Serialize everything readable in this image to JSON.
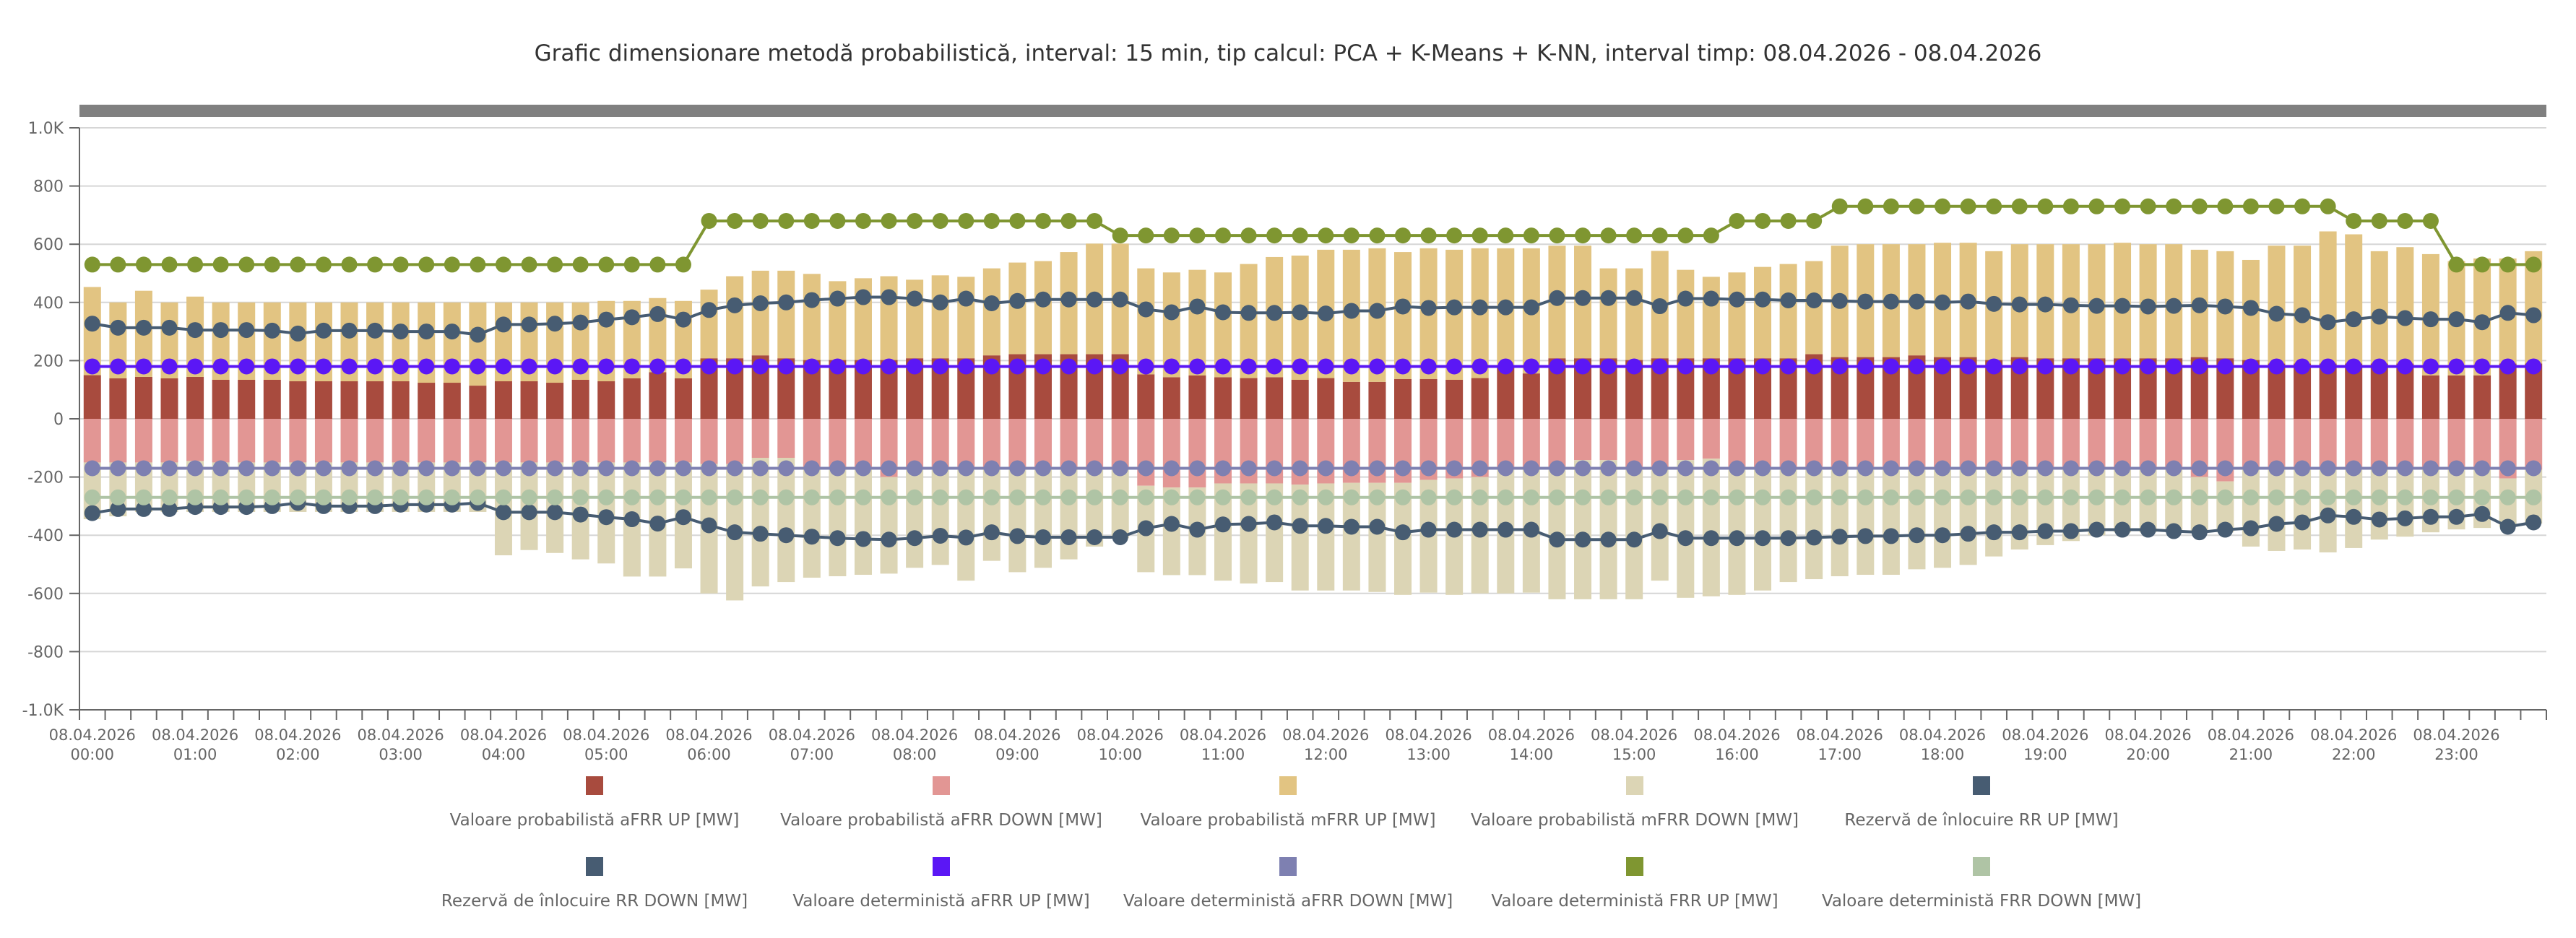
{
  "title": "Grafic dimensionare metodă probabilistică, interval: 15 min, tip calcul: PCA + K-Means + K-NN, interval timp: 08.04.2026 - 08.04.2026",
  "chart_data": {
    "type": "bar",
    "title": "Grafic dimensionare metodă probabilistică, interval: 15 min, tip calcul: PCA + K-Means + K-NN, interval timp: 08.04.2026 - 08.04.2026",
    "xlabel": "",
    "ylabel": "",
    "ylim": [
      -1000,
      1000
    ],
    "yticks": [
      "1.0K",
      "800",
      "600",
      "400",
      "200",
      "0",
      "-200",
      "-400",
      "-600",
      "-800",
      "-1.0K"
    ],
    "ytick_values": [
      1000,
      800,
      600,
      400,
      200,
      0,
      -200,
      -400,
      -600,
      -800,
      -1000
    ],
    "grid": true,
    "legend_position": "bottom",
    "x_count": 96,
    "x_interval": "15 min",
    "xtick_labels": [
      [
        "08.04.2026",
        "00:00"
      ],
      [
        "08.04.2026",
        "01:00"
      ],
      [
        "08.04.2026",
        "02:00"
      ],
      [
        "08.04.2026",
        "03:00"
      ],
      [
        "08.04.2026",
        "04:00"
      ],
      [
        "08.04.2026",
        "05:00"
      ],
      [
        "08.04.2026",
        "06:00"
      ],
      [
        "08.04.2026",
        "07:00"
      ],
      [
        "08.04.2026",
        "08:00"
      ],
      [
        "08.04.2026",
        "09:00"
      ],
      [
        "08.04.2026",
        "10:00"
      ],
      [
        "08.04.2026",
        "11:00"
      ],
      [
        "08.04.2026",
        "12:00"
      ],
      [
        "08.04.2026",
        "13:00"
      ],
      [
        "08.04.2026",
        "14:00"
      ],
      [
        "08.04.2026",
        "15:00"
      ],
      [
        "08.04.2026",
        "16:00"
      ],
      [
        "08.04.2026",
        "17:00"
      ],
      [
        "08.04.2026",
        "18:00"
      ],
      [
        "08.04.2026",
        "19:00"
      ],
      [
        "08.04.2026",
        "20:00"
      ],
      [
        "08.04.2026",
        "21:00"
      ],
      [
        "08.04.2026",
        "22:00"
      ],
      [
        "08.04.2026",
        "23:00"
      ]
    ],
    "series": [
      {
        "name": "Valoare probabilistă aFRR UP [MW]",
        "kind": "bar",
        "stack": "up",
        "color": "#a84b3e",
        "values": [
          150,
          139,
          144,
          139,
          144,
          134,
          134,
          134,
          129,
          129,
          129,
          129,
          129,
          124,
          124,
          114,
          129,
          129,
          124,
          134,
          129,
          139,
          160,
          139,
          208,
          208,
          218,
          208,
          202,
          202,
          202,
          202,
          208,
          208,
          208,
          218,
          222,
          222,
          222,
          222,
          222,
          153,
          143,
          149,
          143,
          140,
          143,
          134,
          140,
          127,
          127,
          137,
          137,
          134,
          140,
          180,
          156,
          208,
          208,
          208,
          202,
          208,
          208,
          208,
          208,
          208,
          208,
          222,
          212,
          212,
          212,
          218,
          212,
          212,
          202,
          212,
          208,
          208,
          208,
          208,
          208,
          208,
          212,
          208,
          202,
          190,
          190,
          190,
          190,
          190,
          190,
          149,
          149,
          149,
          190,
          190
        ]
      },
      {
        "name": "Valoare probabilistă aFRR DOWN [MW]",
        "kind": "bar",
        "stack": "down",
        "color": "#e29694",
        "values": [
          -150,
          -150,
          -150,
          -150,
          -145,
          -150,
          -150,
          -150,
          -150,
          -150,
          -150,
          -150,
          -150,
          -150,
          -150,
          -150,
          -150,
          -150,
          -150,
          -150,
          -150,
          -150,
          -150,
          -150,
          -155,
          -155,
          -134,
          -134,
          -170,
          -170,
          -170,
          -200,
          -170,
          -170,
          -170,
          -170,
          -170,
          -170,
          -170,
          -170,
          -170,
          -230,
          -236,
          -236,
          -222,
          -222,
          -222,
          -226,
          -222,
          -220,
          -220,
          -220,
          -210,
          -205,
          -200,
          -175,
          -175,
          -175,
          -142,
          -142,
          -175,
          -175,
          -142,
          -137,
          -175,
          -175,
          -175,
          -175,
          -175,
          -175,
          -175,
          -175,
          -175,
          -175,
          -175,
          -175,
          -175,
          -175,
          -175,
          -175,
          -175,
          -175,
          -200,
          -215,
          -175,
          -175,
          -175,
          -175,
          -175,
          -175,
          -175,
          -175,
          -175,
          -175,
          -205,
          -175
        ]
      },
      {
        "name": "Valoare probabilistă mFRR UP [MW]",
        "kind": "bar",
        "stack": "up",
        "color": "#e2c482",
        "values": [
          303,
          261,
          296,
          261,
          276,
          266,
          266,
          266,
          271,
          271,
          271,
          271,
          271,
          276,
          276,
          286,
          271,
          271,
          276,
          266,
          276,
          266,
          255,
          266,
          236,
          282,
          291,
          301,
          296,
          271,
          281,
          288,
          270,
          285,
          280,
          299,
          315,
          320,
          351,
          380,
          380,
          364,
          360,
          363,
          360,
          392,
          413,
          427,
          441,
          454,
          459,
          436,
          449,
          447,
          446,
          406,
          430,
          387,
          387,
          309,
          315,
          369,
          304,
          280,
          295,
          314,
          324,
          320,
          383,
          388,
          388,
          382,
          393,
          393,
          374,
          388,
          392,
          392,
          392,
          397,
          392,
          392,
          369,
          368,
          344,
          405,
          405,
          454,
          444,
          386,
          400,
          417,
          393,
          402,
          361,
          386
        ]
      },
      {
        "name": "Valoare probabilistă mFRR DOWN [MW]",
        "kind": "bar",
        "stack": "down",
        "color": "#dcd5b5",
        "values": [
          -195,
          -185,
          -170,
          -170,
          -175,
          -170,
          -170,
          -170,
          -170,
          -170,
          -170,
          -170,
          -170,
          -170,
          -170,
          -170,
          -319,
          -301,
          -311,
          -333,
          -347,
          -392,
          -392,
          -364,
          -445,
          -469,
          -442,
          -427,
          -376,
          -371,
          -366,
          -332,
          -342,
          -332,
          -386,
          -318,
          -357,
          -342,
          -313,
          -269,
          -240,
          -297,
          -301,
          -301,
          -334,
          -344,
          -339,
          -364,
          -368,
          -370,
          -375,
          -385,
          -387,
          -400,
          -400,
          -425,
          -422,
          -445,
          -478,
          -478,
          -445,
          -381,
          -473,
          -473,
          -430,
          -415,
          -386,
          -376,
          -366,
          -361,
          -361,
          -342,
          -337,
          -327,
          -298,
          -274,
          -259,
          -245,
          -225,
          -215,
          -215,
          -215,
          -190,
          -175,
          -264,
          -279,
          -274,
          -284,
          -269,
          -240,
          -230,
          -215,
          -205,
          -200,
          -165,
          -185
        ]
      },
      {
        "name": "Rezervă de înlocuire RR UP [MW]",
        "kind": "line",
        "color": "#475c72",
        "values": [
          327,
          313,
          313,
          313,
          305,
          305,
          305,
          303,
          293,
          303,
          303,
          303,
          300,
          300,
          300,
          289,
          324,
          324,
          327,
          331,
          341,
          349,
          360,
          341,
          374,
          390,
          397,
          400,
          408,
          413,
          418,
          418,
          413,
          400,
          413,
          397,
          405,
          410,
          410,
          410,
          410,
          376,
          366,
          386,
          366,
          364,
          364,
          366,
          362,
          371,
          371,
          386,
          381,
          383,
          383,
          383,
          383,
          415,
          415,
          415,
          415,
          387,
          413,
          413,
          410,
          410,
          407,
          407,
          405,
          403,
          403,
          403,
          400,
          403,
          395,
          393,
          393,
          390,
          388,
          388,
          386,
          388,
          390,
          386,
          381,
          361,
          356,
          332,
          342,
          351,
          346,
          342,
          342,
          332,
          364,
          356
        ]
      },
      {
        "name": "Rezervă de înlocuire RR DOWN [MW]",
        "kind": "line",
        "color": "#475c72",
        "values": [
          -324,
          -310,
          -310,
          -310,
          -303,
          -303,
          -303,
          -300,
          -289,
          -300,
          -300,
          -300,
          -295,
          -295,
          -295,
          -289,
          -321,
          -321,
          -321,
          -329,
          -338,
          -345,
          -360,
          -338,
          -366,
          -390,
          -395,
          -400,
          -405,
          -410,
          -413,
          -415,
          -410,
          -402,
          -408,
          -390,
          -403,
          -407,
          -407,
          -407,
          -407,
          -376,
          -361,
          -381,
          -363,
          -361,
          -356,
          -368,
          -368,
          -371,
          -371,
          -390,
          -381,
          -381,
          -381,
          -381,
          -381,
          -415,
          -415,
          -415,
          -415,
          -386,
          -410,
          -410,
          -410,
          -410,
          -410,
          -408,
          -405,
          -403,
          -403,
          -400,
          -400,
          -395,
          -390,
          -390,
          -386,
          -386,
          -381,
          -381,
          -381,
          -386,
          -390,
          -381,
          -376,
          -361,
          -356,
          -332,
          -337,
          -346,
          -342,
          -337,
          -337,
          -327,
          -371,
          -356
        ]
      },
      {
        "name": "Valoare deterministă aFRR UP [MW]",
        "kind": "line",
        "color": "#5b17f5",
        "values": [
          180,
          180,
          180,
          180,
          180,
          180,
          180,
          180,
          180,
          180,
          180,
          180,
          180,
          180,
          180,
          180,
          180,
          180,
          180,
          180,
          180,
          180,
          180,
          180,
          180,
          180,
          180,
          180,
          180,
          180,
          180,
          180,
          180,
          180,
          180,
          180,
          180,
          180,
          180,
          180,
          180,
          180,
          180,
          180,
          180,
          180,
          180,
          180,
          180,
          180,
          180,
          180,
          180,
          180,
          180,
          180,
          180,
          180,
          180,
          180,
          180,
          180,
          180,
          180,
          180,
          180,
          180,
          180,
          180,
          180,
          180,
          180,
          180,
          180,
          180,
          180,
          180,
          180,
          180,
          180,
          180,
          180,
          180,
          180,
          180,
          180,
          180,
          180,
          180,
          180,
          180,
          180,
          180,
          180,
          180,
          180
        ]
      },
      {
        "name": "Valoare deterministă aFRR DOWN [MW]",
        "kind": "line",
        "color": "#7e80b1",
        "values": [
          -170,
          -170,
          -170,
          -170,
          -170,
          -170,
          -170,
          -170,
          -170,
          -170,
          -170,
          -170,
          -170,
          -170,
          -170,
          -170,
          -170,
          -170,
          -170,
          -170,
          -170,
          -170,
          -170,
          -170,
          -170,
          -170,
          -170,
          -170,
          -170,
          -170,
          -170,
          -170,
          -170,
          -170,
          -170,
          -170,
          -170,
          -170,
          -170,
          -170,
          -170,
          -170,
          -170,
          -170,
          -170,
          -170,
          -170,
          -170,
          -170,
          -170,
          -170,
          -170,
          -170,
          -170,
          -170,
          -170,
          -170,
          -170,
          -170,
          -170,
          -170,
          -170,
          -170,
          -170,
          -170,
          -170,
          -170,
          -170,
          -170,
          -170,
          -170,
          -170,
          -170,
          -170,
          -170,
          -170,
          -170,
          -170,
          -170,
          -170,
          -170,
          -170,
          -170,
          -170,
          -170,
          -170,
          -170,
          -170,
          -170,
          -170,
          -170,
          -170,
          -170,
          -170,
          -170,
          -170
        ]
      },
      {
        "name": "Valoare deterministă FRR UP [MW]",
        "kind": "line",
        "color": "#7f9631",
        "values": [
          530,
          530,
          530,
          530,
          530,
          530,
          530,
          530,
          530,
          530,
          530,
          530,
          530,
          530,
          530,
          530,
          530,
          530,
          530,
          530,
          530,
          530,
          530,
          530,
          680,
          680,
          680,
          680,
          680,
          680,
          680,
          680,
          680,
          680,
          680,
          680,
          680,
          680,
          680,
          680,
          630,
          630,
          630,
          630,
          630,
          630,
          630,
          630,
          630,
          630,
          630,
          630,
          630,
          630,
          630,
          630,
          630,
          630,
          630,
          630,
          630,
          630,
          630,
          630,
          680,
          680,
          680,
          680,
          730,
          730,
          730,
          730,
          730,
          730,
          730,
          730,
          730,
          730,
          730,
          730,
          730,
          730,
          730,
          730,
          730,
          730,
          730,
          730,
          680,
          680,
          680,
          680,
          530,
          530,
          530,
          530
        ]
      },
      {
        "name": "Valoare deterministă FRR DOWN [MW]",
        "kind": "line",
        "color": "#afc4a5",
        "values": [
          -270,
          -270,
          -270,
          -270,
          -270,
          -270,
          -270,
          -270,
          -270,
          -270,
          -270,
          -270,
          -270,
          -270,
          -270,
          -270,
          -270,
          -270,
          -270,
          -270,
          -270,
          -270,
          -270,
          -270,
          -270,
          -270,
          -270,
          -270,
          -270,
          -270,
          -270,
          -270,
          -270,
          -270,
          -270,
          -270,
          -270,
          -270,
          -270,
          -270,
          -270,
          -270,
          -270,
          -270,
          -270,
          -270,
          -270,
          -270,
          -270,
          -270,
          -270,
          -270,
          -270,
          -270,
          -270,
          -270,
          -270,
          -270,
          -270,
          -270,
          -270,
          -270,
          -270,
          -270,
          -270,
          -270,
          -270,
          -270,
          -270,
          -270,
          -270,
          -270,
          -270,
          -270,
          -270,
          -270,
          -270,
          -270,
          -270,
          -270,
          -270,
          -270,
          -270,
          -270,
          -270,
          -270,
          -270,
          -270,
          -270,
          -270,
          -270,
          -270,
          -270,
          -270,
          -270,
          -270
        ]
      }
    ]
  },
  "legend": {
    "row1": [
      {
        "label": "Valoare probabilistă aFRR UP [MW]",
        "color": "#a84b3e"
      },
      {
        "label": "Valoare probabilistă aFRR DOWN [MW]",
        "color": "#e29694"
      },
      {
        "label": "Valoare probabilistă mFRR UP [MW]",
        "color": "#e2c482"
      },
      {
        "label": "Valoare probabilistă mFRR DOWN [MW]",
        "color": "#dcd5b5"
      },
      {
        "label": "Rezervă de înlocuire RR UP [MW]",
        "color": "#475c72"
      }
    ],
    "row2": [
      {
        "label": "Rezervă de înlocuire RR DOWN [MW]",
        "color": "#475c72"
      },
      {
        "label": "Valoare deterministă aFRR UP [MW]",
        "color": "#5b17f5"
      },
      {
        "label": "Valoare deterministă aFRR DOWN [MW]",
        "color": "#7e80b1"
      },
      {
        "label": "Valoare deterministă FRR UP [MW]",
        "color": "#7f9631"
      },
      {
        "label": "Valoare deterministă FRR DOWN [MW]",
        "color": "#afc4a5"
      }
    ]
  }
}
